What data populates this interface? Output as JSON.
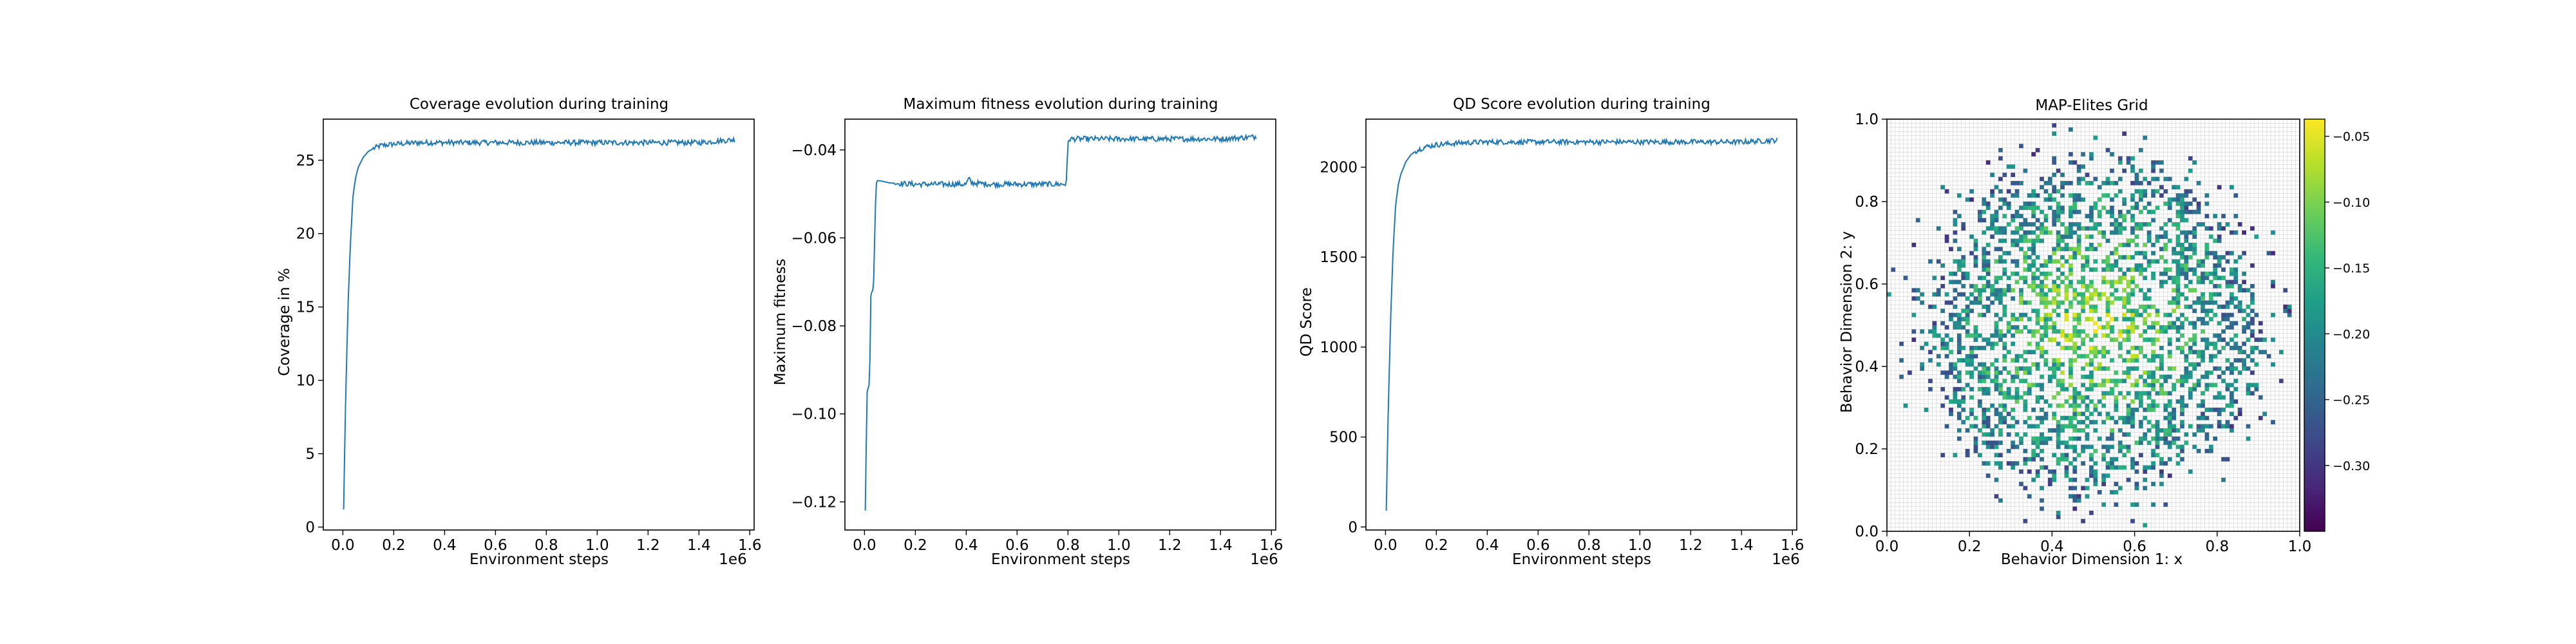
{
  "chart_data": [
    {
      "type": "line",
      "title": "Coverage evolution during training",
      "xlabel": "Environment steps",
      "ylabel": "Coverage in %",
      "x_offset_label": "1e6",
      "xlim": [
        -0.077,
        1.617
      ],
      "ylim": [
        -0.2,
        27.8
      ],
      "xticks": [
        0.0,
        0.2,
        0.4,
        0.6,
        0.8,
        1.0,
        1.2,
        1.4,
        1.6
      ],
      "xtick_labels": [
        "0.0",
        "0.2",
        "0.4",
        "0.6",
        "0.8",
        "1.0",
        "1.2",
        "1.4",
        "1.6"
      ],
      "yticks": [
        0,
        5,
        10,
        15,
        20,
        25
      ],
      "ytick_labels": [
        "0",
        "5",
        "10",
        "15",
        "20",
        "25"
      ],
      "color": "#1f77b4",
      "series": [
        {
          "x": [
            0.003,
            0.01,
            0.02,
            0.03,
            0.04,
            0.05,
            0.06,
            0.08,
            0.1,
            0.12,
            0.15,
            0.2,
            0.3,
            0.4,
            0.6,
            0.8,
            1.0,
            1.2,
            1.4,
            1.54
          ],
          "y": [
            1.2,
            8,
            15,
            19.5,
            22.6,
            23.8,
            24.5,
            25.2,
            25.6,
            25.8,
            26.0,
            26.1,
            26.2,
            26.2,
            26.2,
            26.2,
            26.2,
            26.2,
            26.2,
            26.4
          ],
          "noise": 0.18
        }
      ]
    },
    {
      "type": "line",
      "title": "Maximum fitness evolution during training",
      "xlabel": "Environment steps",
      "ylabel": "Maximum fitness",
      "x_offset_label": "1e6",
      "xlim": [
        -0.077,
        1.617
      ],
      "ylim": [
        -0.1264,
        -0.033
      ],
      "xticks": [
        0.0,
        0.2,
        0.4,
        0.6,
        0.8,
        1.0,
        1.2,
        1.4,
        1.6
      ],
      "xtick_labels": [
        "0.0",
        "0.2",
        "0.4",
        "0.6",
        "0.8",
        "1.0",
        "1.2",
        "1.4",
        "1.6"
      ],
      "yticks": [
        -0.12,
        -0.1,
        -0.08,
        -0.06,
        -0.04
      ],
      "ytick_labels": [
        "−0.12",
        "−0.10",
        "−0.08",
        "−0.06",
        "−0.04"
      ],
      "color": "#1f77b4",
      "series": [
        {
          "x": [
            0.003,
            0.01,
            0.015,
            0.02,
            0.025,
            0.03,
            0.035,
            0.04,
            0.045,
            0.05,
            0.055,
            0.06,
            0.1,
            0.2,
            0.3,
            0.4,
            0.41,
            0.42,
            0.5,
            0.6,
            0.7,
            0.79,
            0.795,
            0.8,
            0.805,
            0.81,
            0.9,
            1.0,
            1.2,
            1.4,
            1.54
          ],
          "y": [
            -0.122,
            -0.095,
            -0.094,
            -0.093,
            -0.073,
            -0.072,
            -0.072,
            -0.06,
            -0.048,
            -0.047,
            -0.047,
            -0.047,
            -0.0475,
            -0.0478,
            -0.0478,
            -0.0478,
            -0.0465,
            -0.0475,
            -0.0478,
            -0.0478,
            -0.0478,
            -0.0478,
            -0.046,
            -0.0385,
            -0.0375,
            -0.0375,
            -0.0375,
            -0.0375,
            -0.0375,
            -0.0375,
            -0.037
          ],
          "noise": 0.0006
        }
      ]
    },
    {
      "type": "line",
      "title": "QD Score evolution during training",
      "xlabel": "Environment steps",
      "ylabel": "QD Score",
      "x_offset_label": "1e6",
      "xlim": [
        -0.077,
        1.617
      ],
      "ylim": [
        -17,
        2267
      ],
      "xticks": [
        0.0,
        0.2,
        0.4,
        0.6,
        0.8,
        1.0,
        1.2,
        1.4,
        1.6
      ],
      "xtick_labels": [
        "0.0",
        "0.2",
        "0.4",
        "0.6",
        "0.8",
        "1.0",
        "1.2",
        "1.4",
        "1.6"
      ],
      "yticks": [
        0,
        500,
        1000,
        1500,
        2000
      ],
      "ytick_labels": [
        "0",
        "500",
        "1000",
        "1500",
        "2000"
      ],
      "color": "#1f77b4",
      "series": [
        {
          "x": [
            0.003,
            0.01,
            0.02,
            0.03,
            0.04,
            0.05,
            0.06,
            0.08,
            0.1,
            0.12,
            0.15,
            0.2,
            0.3,
            0.4,
            0.6,
            0.8,
            1.0,
            1.2,
            1.4,
            1.54
          ],
          "y": [
            90,
            600,
            1150,
            1550,
            1790,
            1900,
            1960,
            2030,
            2070,
            2090,
            2110,
            2125,
            2135,
            2140,
            2140,
            2140,
            2140,
            2140,
            2140,
            2150
          ],
          "noise": 14
        }
      ]
    },
    {
      "type": "heatmap",
      "title": "MAP-Elites Grid",
      "xlabel": "Behavior Dimension 1: x",
      "ylabel": "Behavior Dimension 2: y",
      "xlim": [
        0.0,
        1.0
      ],
      "ylim": [
        0.0,
        1.0
      ],
      "xticks": [
        0.0,
        0.2,
        0.4,
        0.6,
        0.8,
        1.0
      ],
      "xtick_labels": [
        "0.0",
        "0.2",
        "0.4",
        "0.6",
        "0.8",
        "1.0"
      ],
      "yticks": [
        0.0,
        0.2,
        0.4,
        0.6,
        0.8,
        1.0
      ],
      "ytick_labels": [
        "0.0",
        "0.2",
        "0.4",
        "0.6",
        "0.8",
        "1.0"
      ],
      "grid_resolution": 100,
      "filled_fraction": 0.262,
      "fill_region": {
        "shape": "disc",
        "center": [
          0.5,
          0.5
        ],
        "radius": 0.45
      },
      "colormap": "viridis",
      "colorbar": {
        "vmin": -0.35,
        "vmax": -0.037,
        "ticks": [
          -0.3,
          -0.25,
          -0.2,
          -0.15,
          -0.1,
          -0.05
        ],
        "tick_labels": [
          "−0.30",
          "−0.25",
          "−0.20",
          "−0.15",
          "−0.10",
          "−0.05"
        ]
      },
      "colormap_stops": [
        "#440154",
        "#482878",
        "#3e4989",
        "#31688e",
        "#26828e",
        "#1f9e89",
        "#35b779",
        "#6ece58",
        "#b5de2b",
        "#fde725"
      ]
    }
  ]
}
